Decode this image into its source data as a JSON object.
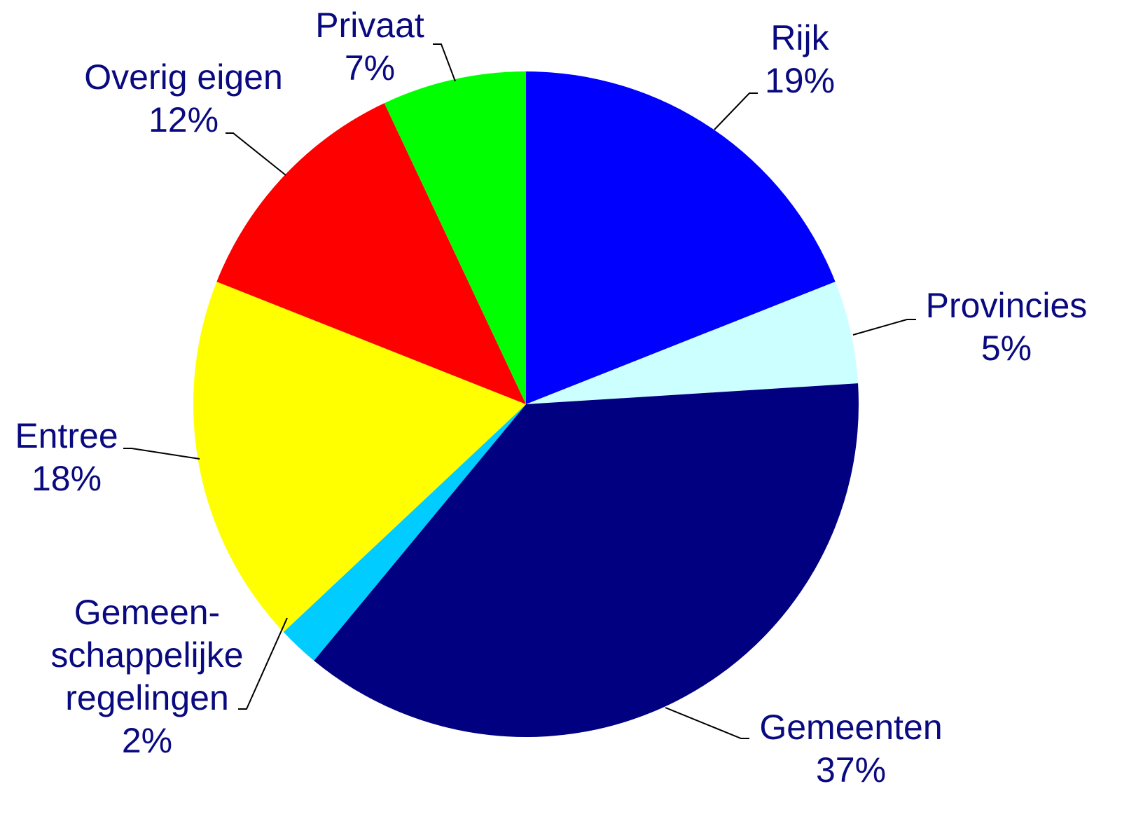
{
  "chart_data": {
    "type": "pie",
    "categories": [
      "Rijk",
      "Provincies",
      "Gemeenten",
      "Gemeen-\nschappelijke\nregelingen",
      "Entree",
      "Overig eigen",
      "Privaat"
    ],
    "values": [
      19,
      5,
      37,
      2,
      18,
      12,
      7
    ],
    "value_labels": [
      "19%",
      "5%",
      "37%",
      "2%",
      "18%",
      "12%",
      "7%"
    ],
    "colors": [
      "#0000ff",
      "#ccffff",
      "#000080",
      "#00ccff",
      "#ffff00",
      "#ff0000",
      "#00ff00"
    ]
  }
}
